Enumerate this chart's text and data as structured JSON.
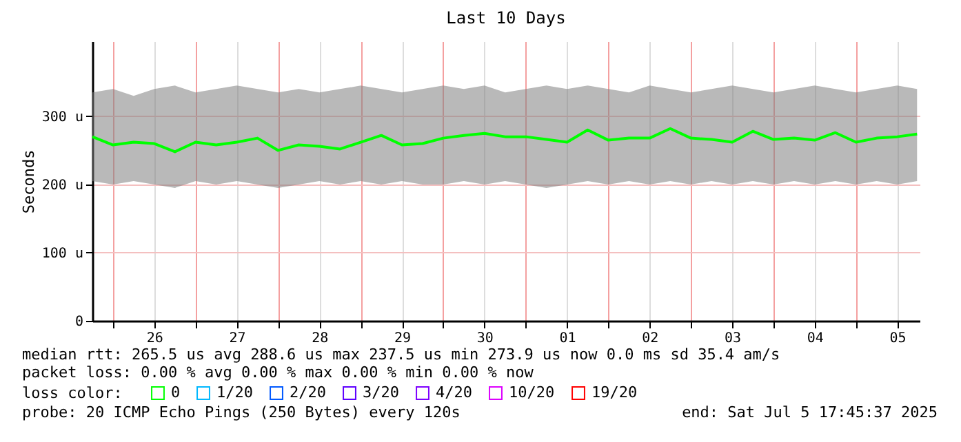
{
  "chart_data": {
    "type": "line",
    "title": "Last 10 Days",
    "ylabel": "Seconds",
    "x": [
      "2025-06-25T18:00",
      "2025-06-26T00:00",
      "2025-06-26T06:00",
      "2025-06-26T12:00",
      "2025-06-26T18:00",
      "2025-06-27T00:00",
      "2025-06-27T06:00",
      "2025-06-27T12:00",
      "2025-06-27T18:00",
      "2025-06-28T00:00",
      "2025-06-28T06:00",
      "2025-06-28T12:00",
      "2025-06-28T18:00",
      "2025-06-29T00:00",
      "2025-06-29T06:00",
      "2025-06-29T12:00",
      "2025-06-29T18:00",
      "2025-06-30T00:00",
      "2025-06-30T06:00",
      "2025-06-30T12:00",
      "2025-06-30T18:00",
      "2025-07-01T00:00",
      "2025-07-01T06:00",
      "2025-07-01T12:00",
      "2025-07-01T18:00",
      "2025-07-02T00:00",
      "2025-07-02T06:00",
      "2025-07-02T12:00",
      "2025-07-02T18:00",
      "2025-07-03T00:00",
      "2025-07-03T06:00",
      "2025-07-03T12:00",
      "2025-07-03T18:00",
      "2025-07-04T00:00",
      "2025-07-04T06:00",
      "2025-07-04T12:00",
      "2025-07-04T18:00",
      "2025-07-05T00:00",
      "2025-07-05T06:00",
      "2025-07-05T12:00",
      "2025-07-05T17:45"
    ],
    "series": [
      {
        "name": "0",
        "color": "#00ff00",
        "values": [
          270,
          258,
          262,
          260,
          248,
          262,
          258,
          262,
          268,
          250,
          258,
          256,
          252,
          262,
          272,
          258,
          260,
          268,
          272,
          275,
          270,
          270,
          266,
          262,
          280,
          265,
          268,
          268,
          282,
          268,
          266,
          262,
          278,
          266,
          268,
          265,
          276,
          262,
          268,
          270,
          274
        ],
        "lower": [
          205,
          200,
          205,
          200,
          195,
          205,
          200,
          205,
          200,
          195,
          200,
          205,
          200,
          205,
          200,
          205,
          200,
          200,
          205,
          200,
          205,
          200,
          195,
          200,
          205,
          200,
          205,
          200,
          205,
          200,
          205,
          200,
          205,
          200,
          205,
          200,
          205,
          200,
          205,
          200,
          205
        ],
        "upper": [
          335,
          340,
          330,
          340,
          345,
          335,
          340,
          345,
          340,
          335,
          340,
          335,
          340,
          345,
          340,
          335,
          340,
          345,
          340,
          345,
          335,
          340,
          345,
          340,
          345,
          340,
          335,
          345,
          340,
          335,
          340,
          345,
          340,
          335,
          340,
          345,
          340,
          335,
          340,
          345,
          340
        ]
      },
      {
        "name": "1/20",
        "color": "#00b8ff",
        "values": [
          null,
          null,
          null,
          null,
          null,
          null,
          null,
          null,
          null,
          null,
          null,
          null,
          null,
          null,
          null,
          null,
          null,
          null,
          null,
          null,
          null,
          null,
          null,
          null,
          null,
          null,
          null,
          null,
          null,
          null,
          null,
          null,
          null,
          null,
          null,
          null,
          null,
          null,
          null,
          null,
          null
        ]
      },
      {
        "name": "2/20",
        "color": "#0059ff",
        "values": [
          null,
          null,
          null,
          null,
          null,
          null,
          null,
          null,
          null,
          null,
          null,
          null,
          null,
          null,
          null,
          null,
          null,
          null,
          null,
          null,
          null,
          null,
          null,
          null,
          null,
          null,
          null,
          null,
          null,
          null,
          null,
          null,
          null,
          null,
          null,
          null,
          null,
          null,
          null,
          null,
          null
        ]
      },
      {
        "name": "3/20",
        "color": "#5e00ff",
        "values": [
          null,
          null,
          null,
          null,
          null,
          null,
          null,
          null,
          null,
          null,
          null,
          null,
          null,
          null,
          null,
          null,
          null,
          null,
          null,
          null,
          null,
          null,
          null,
          null,
          null,
          null,
          null,
          null,
          null,
          null,
          null,
          null,
          null,
          null,
          null,
          null,
          null,
          null,
          null,
          null,
          null
        ]
      },
      {
        "name": "4/20",
        "color": "#7e00ff",
        "values": [
          null,
          null,
          null,
          null,
          null,
          null,
          null,
          null,
          null,
          null,
          null,
          null,
          null,
          null,
          null,
          null,
          null,
          null,
          null,
          null,
          null,
          null,
          null,
          null,
          null,
          null,
          null,
          null,
          null,
          null,
          null,
          null,
          null,
          null,
          null,
          null,
          null,
          null,
          null,
          null,
          null
        ]
      },
      {
        "name": "10/20",
        "color": "#dd00ff",
        "values": [
          null,
          null,
          null,
          null,
          null,
          null,
          null,
          null,
          null,
          null,
          null,
          null,
          null,
          null,
          null,
          null,
          null,
          null,
          null,
          null,
          null,
          null,
          null,
          null,
          null,
          null,
          null,
          null,
          null,
          null,
          null,
          null,
          null,
          null,
          null,
          null,
          null,
          null,
          null,
          null,
          null
        ]
      },
      {
        "name": "19/20",
        "color": "#ff0000",
        "values": [
          null,
          null,
          null,
          null,
          null,
          null,
          null,
          null,
          null,
          null,
          null,
          null,
          null,
          null,
          null,
          null,
          null,
          null,
          null,
          null,
          null,
          null,
          null,
          null,
          null,
          null,
          null,
          null,
          null,
          null,
          null,
          null,
          null,
          null,
          null,
          null,
          null,
          null,
          null,
          null,
          null
        ]
      }
    ],
    "legend_title": "loss color:",
    "legend": "bottom left",
    "xlim": [
      "2025-06-25T18:00",
      "2025-07-05T18:30"
    ],
    "xticks": [
      {
        "value": "2025-06-26T00:00",
        "label": null
      },
      {
        "value": "2025-06-26T12:00",
        "label": "26"
      },
      {
        "value": "2025-06-27T00:00",
        "label": null
      },
      {
        "value": "2025-06-27T12:00",
        "label": "27"
      },
      {
        "value": "2025-06-28T00:00",
        "label": null
      },
      {
        "value": "2025-06-28T12:00",
        "label": "28"
      },
      {
        "value": "2025-06-29T00:00",
        "label": null
      },
      {
        "value": "2025-06-29T12:00",
        "label": "29"
      },
      {
        "value": "2025-06-30T00:00",
        "label": null
      },
      {
        "value": "2025-06-30T12:00",
        "label": "30"
      },
      {
        "value": "2025-07-01T00:00",
        "label": null
      },
      {
        "value": "2025-07-01T12:00",
        "label": "01"
      },
      {
        "value": "2025-07-02T00:00",
        "label": null
      },
      {
        "value": "2025-07-02T12:00",
        "label": "02"
      },
      {
        "value": "2025-07-03T00:00",
        "label": null
      },
      {
        "value": "2025-07-03T12:00",
        "label": "03"
      },
      {
        "value": "2025-07-04T00:00",
        "label": null
      },
      {
        "value": "2025-07-04T12:00",
        "label": "04"
      },
      {
        "value": "2025-07-05T00:00",
        "label": null
      },
      {
        "value": "2025-07-05T12:00",
        "label": "05"
      }
    ],
    "ylim": [
      0,
      410
    ],
    "yticks": [
      0,
      {
        "value": 100,
        "label": "100 u"
      },
      {
        "value": 200,
        "label": "200 u"
      },
      {
        "value": 300,
        "label": "300 u"
      }
    ],
    "grid": true,
    "annotations": [
      "median rtt:  265.5 us avg  288.6 us max  237.5 us min  273.9 us now  0.0 ms sd  35.4   am/s",
      "packet loss: 0.00 % avg  0.00 % max  0.00 % min  0.00 % now",
      "probe:       20 ICMP Echo Pings (250 Bytes) every 120s",
      "end: Sat Jul  5 17:45:37 2025"
    ]
  }
}
